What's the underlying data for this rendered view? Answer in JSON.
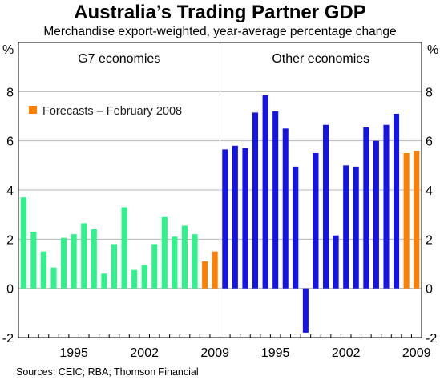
{
  "title": "Australia’s Trading Partner GDP",
  "subtitle": "Merchandise export-weighted, year-average percentage change",
  "source": "Sources: CEIC; RBA; Thomson Financial",
  "colors": {
    "g7": "#2EF28A",
    "other": "#1414E6",
    "forecast": "#FF8000",
    "grid": "#B4B4B4"
  },
  "chart_data": {
    "type": "bar",
    "unit_left": "%",
    "unit_right": "%",
    "ylim": [
      -2,
      10
    ],
    "yticks": [
      -2,
      0,
      2,
      4,
      6,
      8
    ],
    "legend": {
      "label": "Forecasts – February 2008",
      "placement": "top-left"
    },
    "panels": [
      {
        "label": "G7 economies",
        "x_tick_labels": [
          "1995",
          "2002",
          "2009"
        ],
        "years": [
          1990,
          1991,
          1992,
          1993,
          1994,
          1995,
          1996,
          1997,
          1998,
          1999,
          2000,
          2001,
          2002,
          2003,
          2004,
          2005,
          2006,
          2007,
          2008,
          2009
        ],
        "values": [
          3.7,
          2.3,
          1.5,
          0.85,
          2.05,
          2.2,
          2.65,
          2.4,
          0.6,
          1.8,
          3.3,
          0.75,
          0.95,
          1.8,
          2.9,
          2.1,
          2.55,
          2.2,
          1.1,
          1.5
        ],
        "forecast_years": [
          2008,
          2009
        ]
      },
      {
        "label": "Other economies",
        "x_tick_labels": [
          "1995",
          "2002",
          "2009"
        ],
        "years": [
          1990,
          1991,
          1992,
          1993,
          1994,
          1995,
          1996,
          1997,
          1998,
          1999,
          2000,
          2001,
          2002,
          2003,
          2004,
          2005,
          2006,
          2007,
          2008,
          2009
        ],
        "values": [
          5.65,
          5.8,
          5.7,
          7.15,
          7.85,
          7.2,
          6.5,
          4.95,
          -1.8,
          5.5,
          6.65,
          2.15,
          5.0,
          4.95,
          6.55,
          6.0,
          6.65,
          7.1,
          5.5,
          5.6
        ],
        "forecast_years": [
          2008,
          2009
        ]
      }
    ]
  }
}
